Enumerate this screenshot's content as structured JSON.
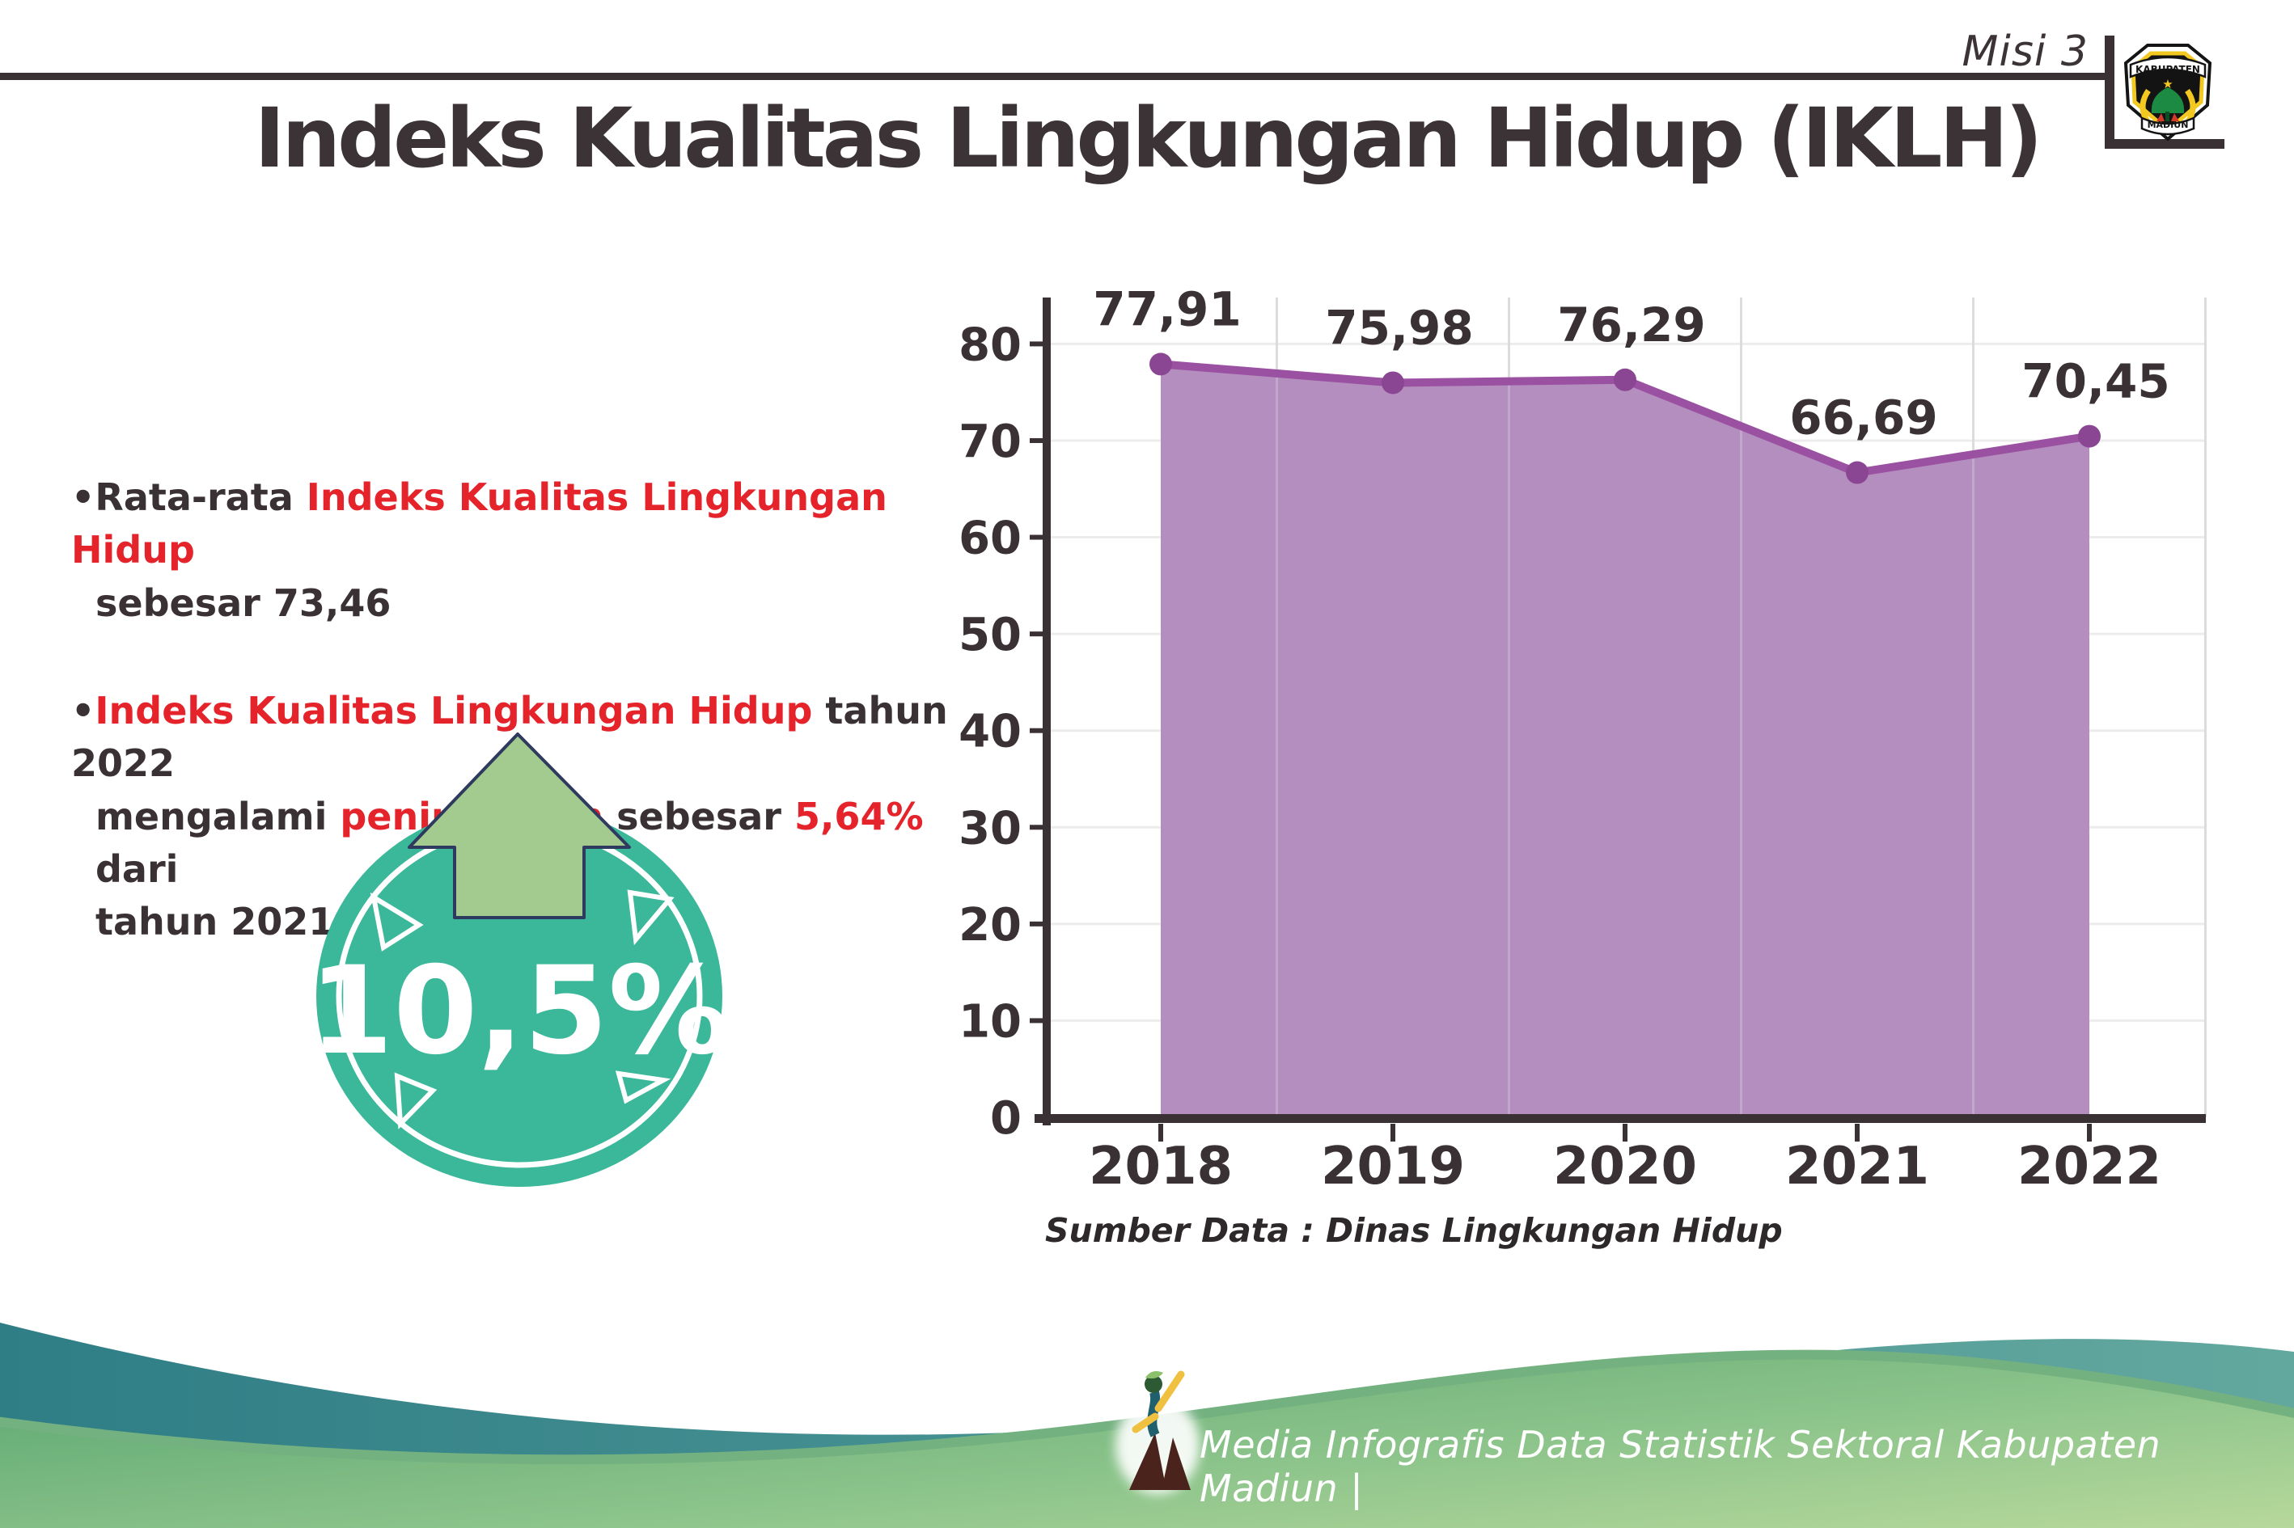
{
  "header": {
    "tag": "Misi 3"
  },
  "logo": {
    "top": "KABUPATEN",
    "bottom": "MADIUN"
  },
  "title": "Indeks Kualitas Lingkungan Hidup (IKLH)",
  "bullets": {
    "b1": {
      "marker": "•",
      "s_dark": "Rata-rata ",
      "s_red": "Indeks Kualitas Lingkungan Hidup",
      "line2": "sebesar 73,46"
    },
    "b2": {
      "marker": "•",
      "s_red1": "Indeks Kualitas Lingkungan Hidup",
      "s_dark1": " tahun 2022",
      "l2_dark1": "mengalami ",
      "l2_red1": "peningkatan",
      "l2_dark2": " sebesar ",
      "l2_red2": "5,64%",
      "l2_dark3": " dari",
      "line3": "tahun 2021"
    }
  },
  "badge": {
    "value": "10,5%",
    "circle_color": "#3bb79a",
    "arrow_color": "#a3cb8f",
    "arrow_outline_color": "#2e3a5e"
  },
  "chart_data": {
    "type": "area",
    "title": "",
    "xlabel": "",
    "ylabel": "",
    "categories": [
      "2018",
      "2019",
      "2020",
      "2021",
      "2022"
    ],
    "values": [
      77.91,
      75.98,
      76.29,
      66.69,
      70.45
    ],
    "value_labels": [
      "77,91",
      "75,98",
      "76,29",
      "66,69",
      "70,45"
    ],
    "yticks": [
      0,
      10,
      20,
      30,
      40,
      50,
      60,
      70,
      80
    ],
    "ylim": [
      0,
      84.8
    ],
    "grid": true,
    "legend": "none",
    "line_color": "#9b51a1",
    "marker_color": "#8a4692",
    "fill_color": "#b28abd",
    "axis_color": "#3a3134",
    "label_color": "#3a3134"
  },
  "source_note": "Sumber Data : Dinas Lingkungan Hidup",
  "footer": {
    "text": "Media Infografis Data Statistik Sektoral Kabupaten Madiun |",
    "teal_color": "#2f7e86",
    "green_color": "#58a46f"
  }
}
